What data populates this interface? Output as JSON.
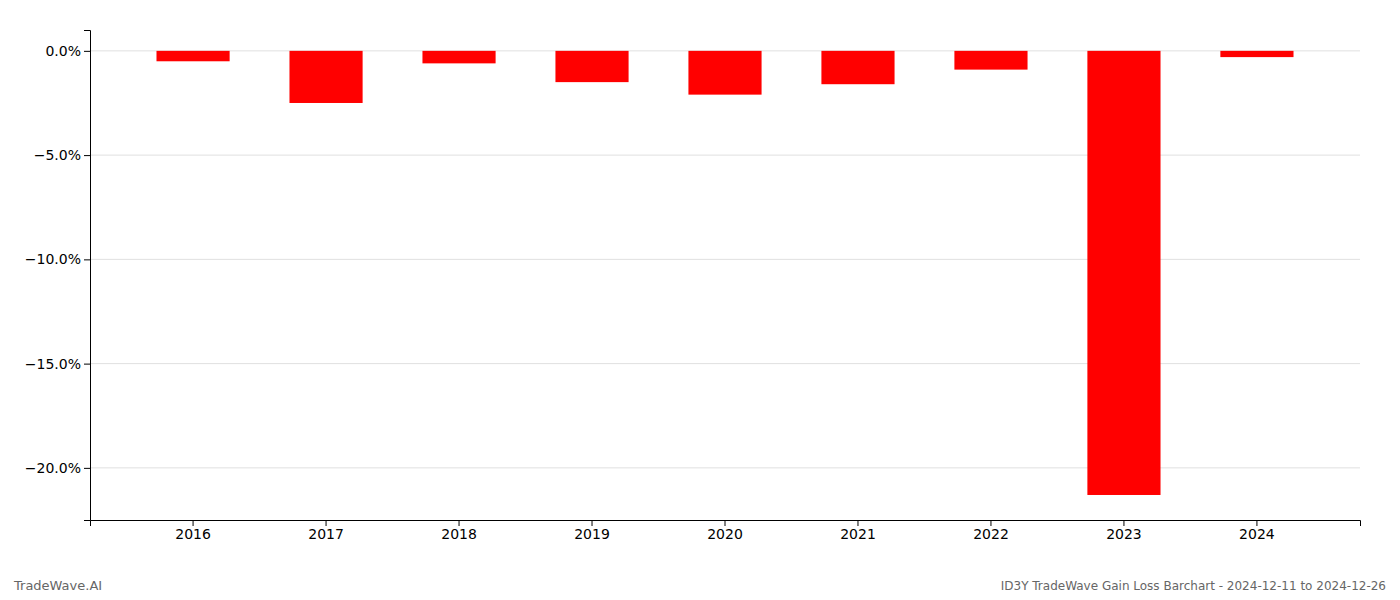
{
  "chart_data": {
    "type": "bar",
    "categories": [
      "2016",
      "2017",
      "2018",
      "2019",
      "2020",
      "2021",
      "2022",
      "2023",
      "2024"
    ],
    "values": [
      -0.5,
      -2.5,
      -0.6,
      -1.5,
      -2.1,
      -1.6,
      -0.9,
      -21.3,
      -0.3
    ],
    "color": "#ff0000",
    "ylim": [
      -22.5,
      1.0
    ],
    "yticks": [
      {
        "value": 0.0,
        "label": "0.0%"
      },
      {
        "value": -5.0,
        "label": "−5.0%"
      },
      {
        "value": -10.0,
        "label": "−10.0%"
      },
      {
        "value": -15.0,
        "label": "−15.0%"
      },
      {
        "value": -20.0,
        "label": "−20.0%"
      }
    ],
    "grid": true,
    "annotations": [
      "TradeWave.AI",
      "ID3Y TradeWave Gain Loss Barchart - 2024-12-11 to 2024-12-26"
    ]
  }
}
